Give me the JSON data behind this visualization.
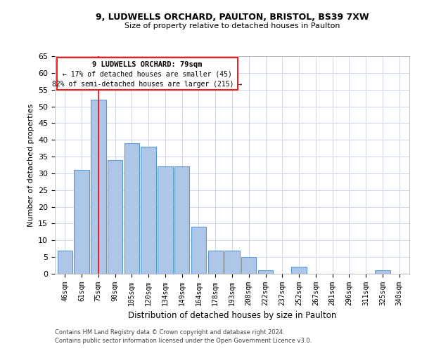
{
  "title1": "9, LUDWELLS ORCHARD, PAULTON, BRISTOL, BS39 7XW",
  "title2": "Size of property relative to detached houses in Paulton",
  "xlabel": "Distribution of detached houses by size in Paulton",
  "ylabel": "Number of detached properties",
  "categories": [
    "46sqm",
    "61sqm",
    "75sqm",
    "90sqm",
    "105sqm",
    "120sqm",
    "134sqm",
    "149sqm",
    "164sqm",
    "178sqm",
    "193sqm",
    "208sqm",
    "222sqm",
    "237sqm",
    "252sqm",
    "267sqm",
    "281sqm",
    "296sqm",
    "311sqm",
    "325sqm",
    "340sqm"
  ],
  "values": [
    7,
    31,
    52,
    34,
    39,
    38,
    32,
    32,
    14,
    7,
    7,
    5,
    1,
    0,
    2,
    0,
    0,
    0,
    0,
    1,
    0
  ],
  "bar_color": "#aec6e8",
  "bar_edge_color": "#5b9bd5",
  "red_line_x": 2,
  "annotation_title": "9 LUDWELLS ORCHARD: 79sqm",
  "annotation_line1": "← 17% of detached houses are smaller (45)",
  "annotation_line2": "82% of semi-detached houses are larger (215) →",
  "ylim": [
    0,
    65
  ],
  "yticks": [
    0,
    5,
    10,
    15,
    20,
    25,
    30,
    35,
    40,
    45,
    50,
    55,
    60,
    65
  ],
  "footer1": "Contains HM Land Registry data © Crown copyright and database right 2024.",
  "footer2": "Contains public sector information licensed under the Open Government Licence v3.0.",
  "background_color": "#ffffff",
  "grid_color": "#d0d8e8"
}
